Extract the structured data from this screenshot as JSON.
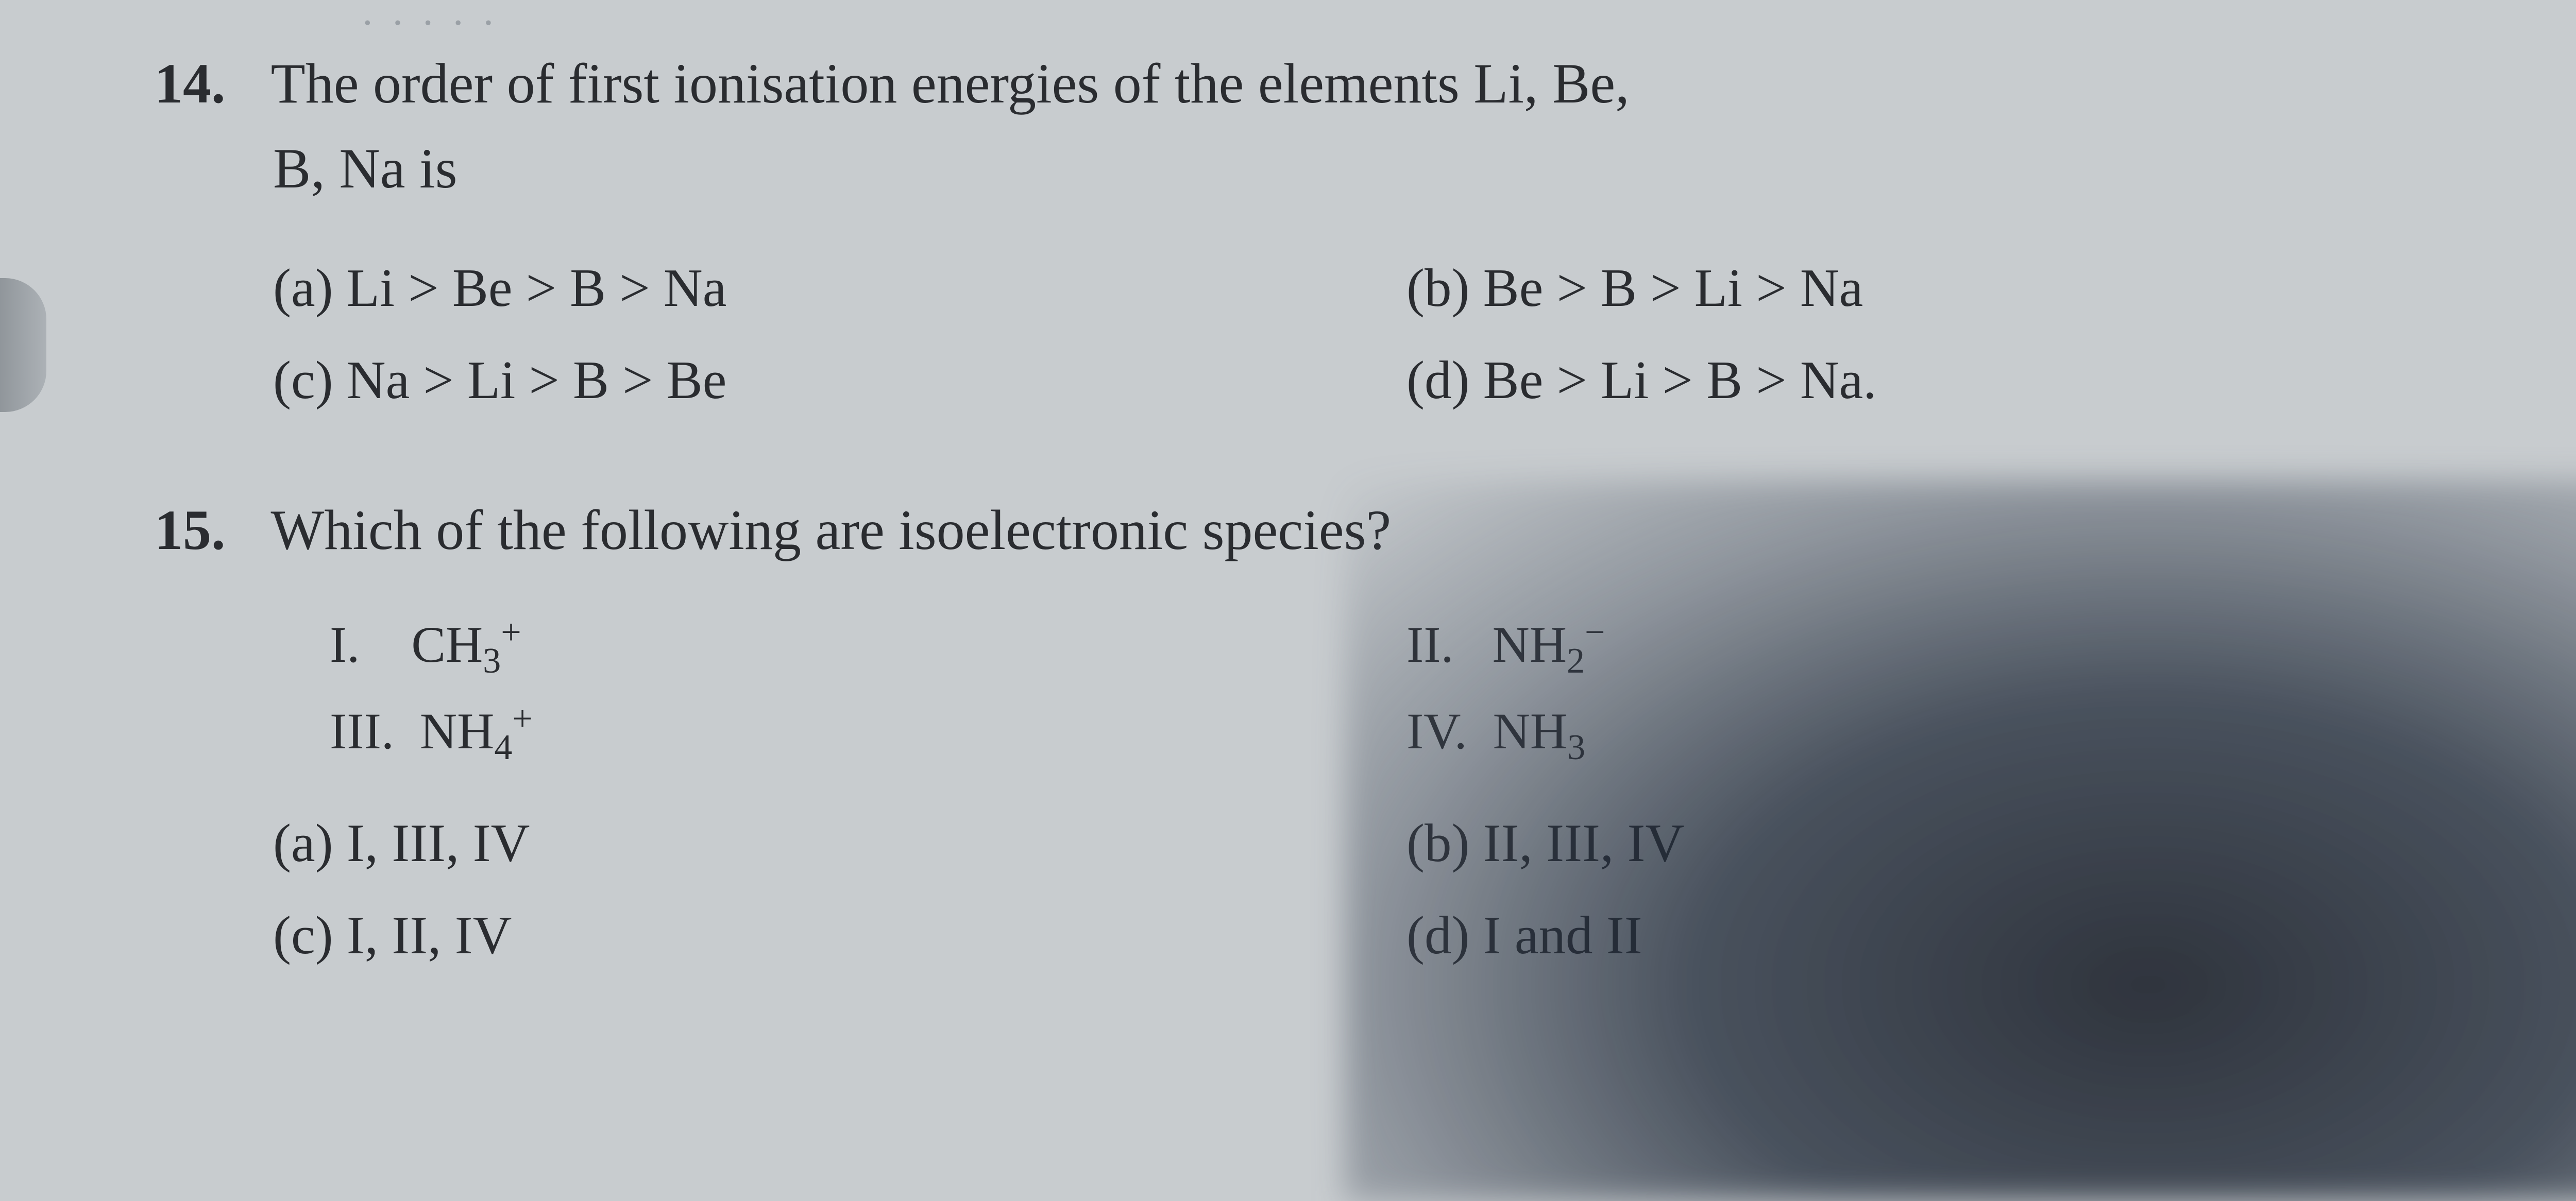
{
  "q14": {
    "number": "14.",
    "stem_line1": "The order of first ionisation energies of the elements Li, Be,",
    "stem_line2": "B, Na is",
    "options": {
      "a": "(a)  Li > Be > B > Na",
      "b": "(b)  Be > B > Li > Na",
      "c": "(c)  Na > Li > B > Be",
      "d": "(d)  Be > Li > B > Na."
    }
  },
  "q15": {
    "number": "15.",
    "stem": "Which of the following are isoelectronic species?",
    "roman": {
      "i_label": "I.",
      "i_val_html": "CH<span class='sub'>3</span><span class='sup'>+</span>",
      "ii_label": "II.",
      "ii_val_html": "NH<span class='sub'>2</span><span class='sup'>−</span>",
      "iii_label": "III.",
      "iii_val_html": "NH<span class='sub'>4</span><span class='sup'>+</span>",
      "iv_label": "IV.",
      "iv_val_html": "NH<span class='sub'>3</span>"
    },
    "options": {
      "a": "(a)  I, III, IV",
      "b": "(b)  II, III, IV",
      "c": "(c)  I, II, IV",
      "d": "(d)  I and II"
    }
  },
  "margin_right": "2",
  "top_smudge": "· · ·  · ·"
}
